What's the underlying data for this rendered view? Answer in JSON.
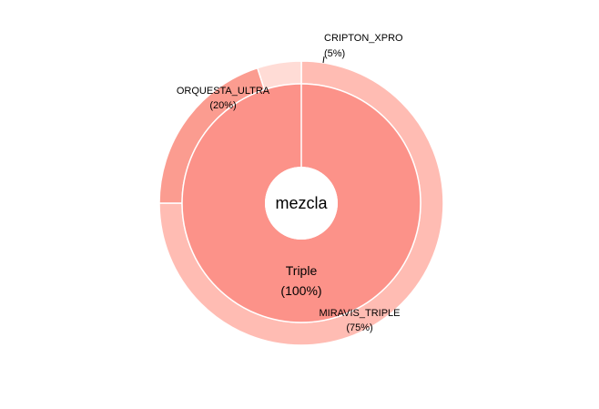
{
  "chart_data": {
    "type": "sunburst",
    "center_label": "mezcla",
    "inner_ring": [
      {
        "name": "Triple",
        "value": 100,
        "pct_label": "(100%)",
        "color": "#fc9289"
      }
    ],
    "outer_ring": [
      {
        "name": "MIRAVIS_TRIPLE",
        "value": 75,
        "pct_label": "(75%)",
        "color": "#ffbcb3"
      },
      {
        "name": "ORQUESTA_ULTRA",
        "value": 20,
        "pct_label": "(20%)",
        "color": "#fb9c90"
      },
      {
        "name": "CRIPTON_XPRO",
        "value": 5,
        "pct_label": "(5%)",
        "color": "#ffdcd6"
      }
    ],
    "outer_start_angle_deg": 0,
    "outer_direction": "clockwise_from_top",
    "legend": "none",
    "grid": false
  }
}
